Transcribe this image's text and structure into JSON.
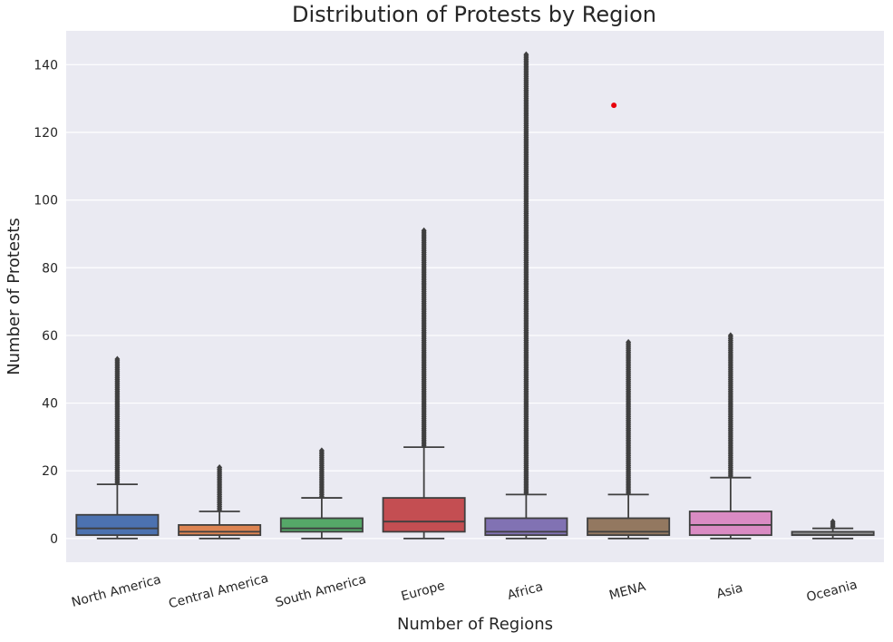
{
  "chart_data": {
    "type": "box",
    "title": "Distribution of Protests by Region",
    "xlabel": "Number of Regions",
    "ylabel": "Number of Protests",
    "ylim": [
      -7,
      150
    ],
    "yticks": [
      0,
      20,
      40,
      60,
      80,
      100,
      120,
      140
    ],
    "grid": true,
    "legend": "none",
    "categories": [
      "North America",
      "Central America",
      "South America",
      "Europe",
      "Africa",
      "MENA",
      "Asia",
      "Oceania"
    ],
    "colors": [
      "#4c72b0",
      "#dd8452",
      "#55a868",
      "#c44e52",
      "#8172b3",
      "#937860",
      "#da8bc3",
      "#8c8c8c"
    ],
    "boxes": [
      {
        "min": 0,
        "q1": 1,
        "median": 3,
        "q3": 7,
        "whisker_high": 16,
        "outlier_low": 16.5,
        "outlier_max": 53
      },
      {
        "min": 0,
        "q1": 1,
        "median": 2,
        "q3": 4,
        "whisker_high": 8,
        "outlier_low": 8.5,
        "outlier_max": 21
      },
      {
        "min": 0,
        "q1": 2,
        "median": 3,
        "q3": 6,
        "whisker_high": 12,
        "outlier_low": 12.5,
        "outlier_max": 26
      },
      {
        "min": 0,
        "q1": 2,
        "median": 5,
        "q3": 12,
        "whisker_high": 27,
        "outlier_low": 27.5,
        "outlier_max": 91
      },
      {
        "min": 0,
        "q1": 1,
        "median": 2,
        "q3": 6,
        "whisker_high": 13,
        "outlier_low": 13.5,
        "outlier_max": 143
      },
      {
        "min": 0,
        "q1": 1,
        "median": 2,
        "q3": 6,
        "whisker_high": 13,
        "outlier_low": 13.5,
        "outlier_max": 58
      },
      {
        "min": 0,
        "q1": 1,
        "median": 4,
        "q3": 8,
        "whisker_high": 18,
        "outlier_low": 18.5,
        "outlier_max": 60
      },
      {
        "min": 0,
        "q1": 1,
        "median": 1,
        "q3": 2,
        "whisker_high": 3,
        "outlier_low": 3.5,
        "outlier_max": 5
      }
    ],
    "annotation_point": {
      "x_category_index": 5,
      "y": 128,
      "color": "#e8000b"
    }
  }
}
